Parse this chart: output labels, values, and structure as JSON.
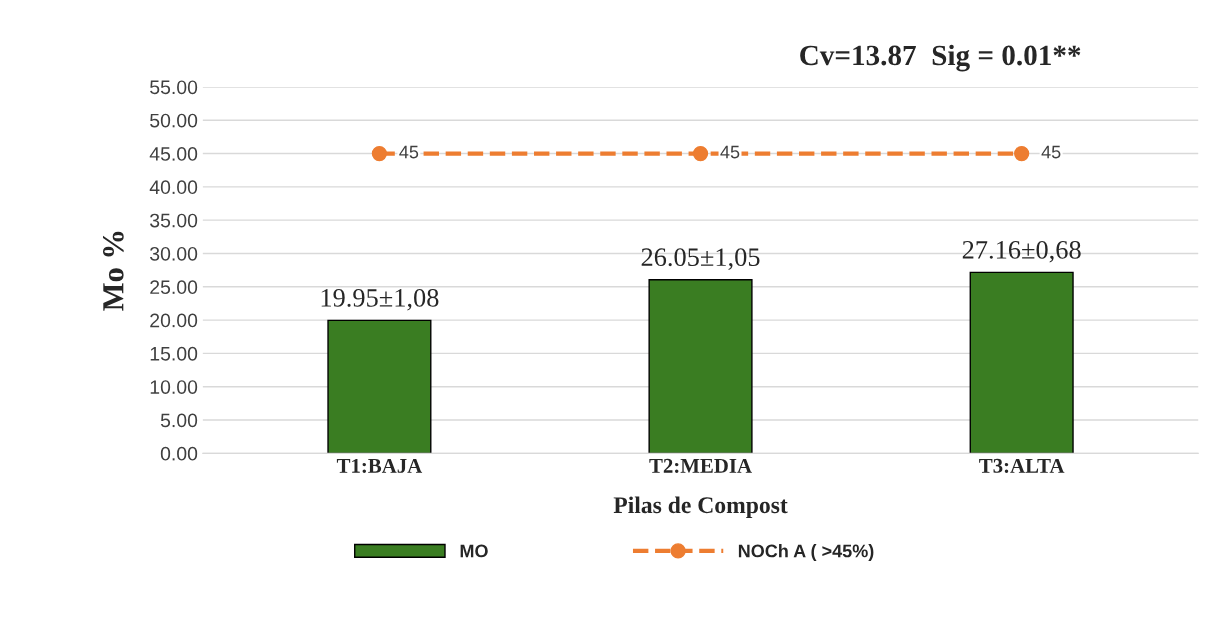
{
  "chart_data": {
    "type": "bar",
    "xlabel": "Pilas de Compost",
    "ylabel": "Mo %",
    "annotations": [
      "Cv=13.87  Sig = 0.01**"
    ],
    "categories": [
      "T1:BAJA",
      "T2:MEDIA",
      "T3:ALTA"
    ],
    "series": [
      {
        "name": "MO",
        "color": "#3a7d22",
        "values": [
          19.95,
          26.05,
          27.16
        ],
        "value_labels": [
          "19.95±1,08",
          "26.05±1,05",
          "27.16±0,68"
        ]
      },
      {
        "name": "NOCh A ( >45%)",
        "type": "line",
        "color": "#ed7d31",
        "values": [
          45,
          45,
          45
        ],
        "value_labels": [
          "45",
          "45",
          "45"
        ],
        "marker": "circle",
        "line_style": "dashed"
      }
    ],
    "ylim": [
      0,
      55
    ],
    "yticks": [
      {
        "value": 0,
        "label": "0.00"
      },
      {
        "value": 5,
        "label": "5.00"
      },
      {
        "value": 10,
        "label": "10.00"
      },
      {
        "value": 15,
        "label": "15.00"
      },
      {
        "value": 20,
        "label": "20.00"
      },
      {
        "value": 25,
        "label": "25.00"
      },
      {
        "value": 30,
        "label": "30.00"
      },
      {
        "value": 35,
        "label": "35.00"
      },
      {
        "value": 40,
        "label": "40.00"
      },
      {
        "value": 45,
        "label": "45.00"
      },
      {
        "value": 50,
        "label": "50.00"
      },
      {
        "value": 55,
        "label": "55.00"
      }
    ],
    "grid": "y",
    "legend": "bottom"
  }
}
